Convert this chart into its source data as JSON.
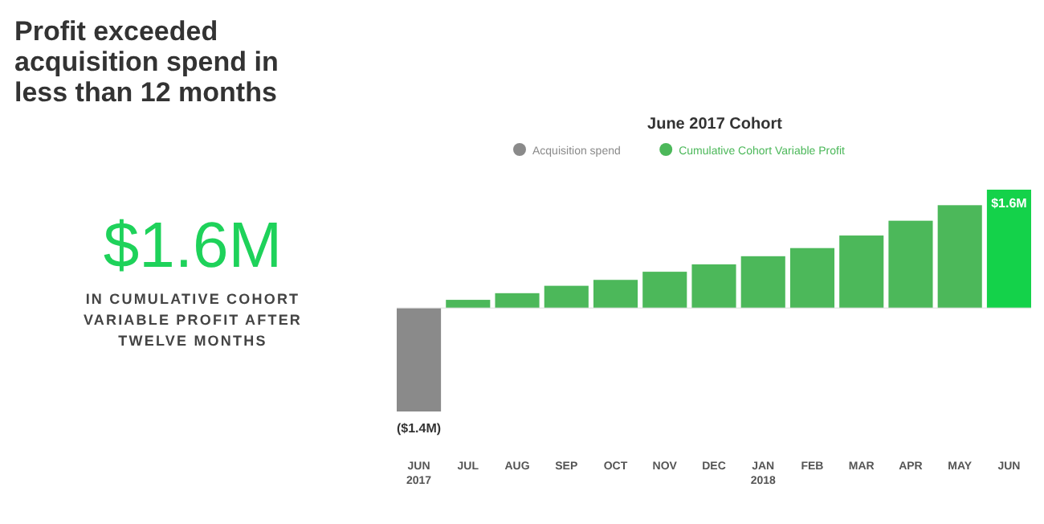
{
  "chart_data": {
    "type": "bar",
    "title": "June 2017 Cohort",
    "subtitle": "Profit exceeded acquisition spend in less than 12 months",
    "annotations": [
      "$1.6M",
      "IN CUMULATIVE COHORT VARIABLE PROFIT AFTER TWELVE MONTHS"
    ],
    "categories": [
      "JUN 2017",
      "JUL",
      "AUG",
      "SEP",
      "OCT",
      "NOV",
      "DEC",
      "JAN 2018",
      "FEB",
      "MAR",
      "APR",
      "MAY",
      "JUN"
    ],
    "relative": false,
    "legend": "top",
    "grid": false,
    "series": [
      {
        "name": "Acquisition spend",
        "color": "#8a8a8a",
        "values": [
          -1.4,
          null,
          null,
          null,
          null,
          null,
          null,
          null,
          null,
          null,
          null,
          null,
          null
        ],
        "value_labels": [
          "($1.4M)",
          null,
          null,
          null,
          null,
          null,
          null,
          null,
          null,
          null,
          null,
          null,
          null
        ]
      },
      {
        "name": "Cumulative Cohort Variable Profit",
        "color": "#4cb85a",
        "colors": [
          null,
          "#4cb85a",
          "#4cb85a",
          "#4cb85a",
          "#4cb85a",
          "#4cb85a",
          "#4cb85a",
          "#4cb85a",
          "#4cb85a",
          "#4cb85a",
          "#4cb85a",
          "#4cb85a",
          "#14d24a"
        ],
        "values": [
          null,
          0.11,
          0.2,
          0.3,
          0.38,
          0.49,
          0.59,
          0.7,
          0.81,
          0.98,
          1.18,
          1.39,
          1.6
        ],
        "value_labels": [
          null,
          null,
          null,
          null,
          null,
          null,
          null,
          null,
          null,
          null,
          null,
          null,
          "$1.6M"
        ]
      }
    ]
  }
}
